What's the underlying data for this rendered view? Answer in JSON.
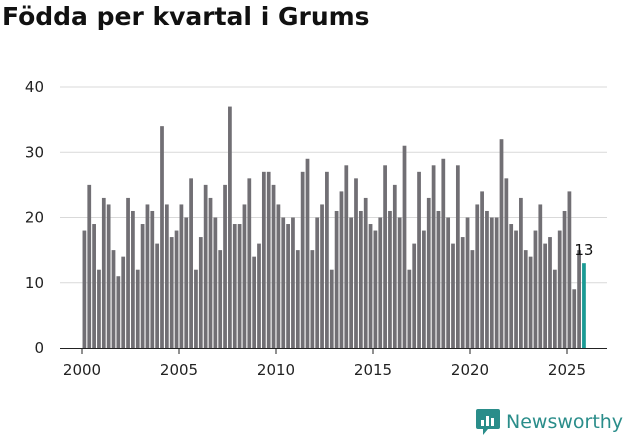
{
  "title": "Födda per kvartal i Grums",
  "brand": {
    "name": "Newsworthy",
    "icon": "newsworthy-chart-icon",
    "color": "#2a8d8a"
  },
  "colors": {
    "bar": "#716f74",
    "highlight": "#1a9a94",
    "grid": "#d9d9d9",
    "axis": "#222222"
  },
  "chart_data": {
    "type": "bar",
    "title": "Födda per kvartal i Grums",
    "xlabel": "",
    "ylabel": "",
    "ylim": [
      0,
      40
    ],
    "yticks": [
      0,
      10,
      20,
      30,
      40
    ],
    "xticks": [
      2000,
      2005,
      2010,
      2015,
      2020,
      2025
    ],
    "x_range": [
      2000,
      2026
    ],
    "grid": true,
    "series": [
      {
        "name": "Födda",
        "start": 2000.0,
        "step": 0.25,
        "values": [
          18,
          25,
          19,
          12,
          23,
          22,
          15,
          11,
          14,
          23,
          21,
          12,
          19,
          22,
          21,
          16,
          34,
          22,
          17,
          18,
          22,
          20,
          26,
          12,
          17,
          25,
          23,
          20,
          15,
          25,
          37,
          19,
          19,
          22,
          26,
          14,
          16,
          27,
          27,
          25,
          22,
          20,
          19,
          20,
          15,
          27,
          29,
          15,
          20,
          22,
          27,
          12,
          21,
          24,
          28,
          20,
          26,
          21,
          23,
          19,
          18,
          20,
          28,
          21,
          25,
          20,
          31,
          12,
          16,
          27,
          18,
          23,
          28,
          21,
          29,
          20,
          16,
          28,
          17,
          20,
          15,
          22,
          24,
          21,
          20,
          20,
          32,
          26,
          19,
          18,
          23,
          15,
          14,
          18,
          22,
          16,
          17,
          12,
          18,
          21,
          24,
          9,
          15,
          13
        ]
      }
    ],
    "highlight_index": 103,
    "annotations": [
      {
        "label": "13",
        "index": 103
      }
    ]
  }
}
